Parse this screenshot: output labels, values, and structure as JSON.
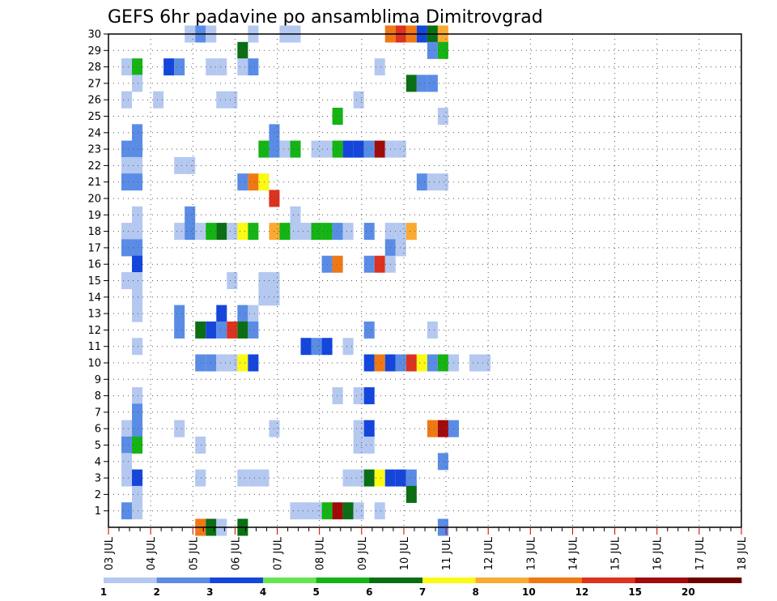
{
  "chart_data": {
    "type": "heatmap",
    "title": "GEFS 6hr padavine po ansamblima Dimitrovgrad",
    "x_labels": [
      "03 JUL",
      "04 JUL",
      "05 JUL",
      "06 JUL",
      "07 JUL",
      "08 JUL",
      "09 JUL",
      "10 JUL",
      "11 JUL",
      "12 JUL",
      "13 JUL",
      "14 JUL",
      "15 JUL",
      "16 JUL",
      "17 JUL",
      "18 JUL"
    ],
    "y_labels": [
      "1",
      "2",
      "3",
      "4",
      "5",
      "6",
      "7",
      "8",
      "9",
      "10",
      "11",
      "12",
      "13",
      "14",
      "15",
      "16",
      "17",
      "18",
      "19",
      "20",
      "21",
      "22",
      "23",
      "24",
      "25",
      "26",
      "27",
      "28",
      "29",
      "30"
    ],
    "x_range": [
      0,
      60
    ],
    "y_range": [
      0,
      30
    ],
    "grid": "dotted",
    "legend_placement": "bottom",
    "legend": {
      "labels": [
        "1",
        "2",
        "3",
        "4",
        "5",
        "6",
        "7",
        "8",
        "10",
        "12",
        "15",
        "20"
      ],
      "colors": [
        "#b4c8f0",
        "#5a8ce6",
        "#1446dc",
        "#64e650",
        "#14b414",
        "#0a6e14",
        "#fafa14",
        "#faaa32",
        "#f07814",
        "#dc321e",
        "#a00a0a",
        "#6e0000"
      ]
    },
    "cells": [
      [
        30,
        [
          [
            6,
            1
          ],
          [
            7,
            2
          ],
          [
            8,
            1
          ],
          [
            12,
            1
          ],
          [
            15,
            1
          ],
          [
            16,
            1
          ],
          [
            25,
            9
          ],
          [
            26,
            10
          ],
          [
            27,
            9
          ],
          [
            28,
            3
          ],
          [
            29,
            6
          ],
          [
            30,
            8
          ]
        ]
      ],
      [
        29,
        [
          [
            11,
            6
          ],
          [
            29,
            2
          ],
          [
            30,
            5
          ]
        ]
      ],
      [
        28,
        [
          [
            0,
            1
          ],
          [
            1,
            5
          ],
          [
            4,
            3
          ],
          [
            5,
            2
          ],
          [
            8,
            1
          ],
          [
            9,
            1
          ],
          [
            11,
            1
          ],
          [
            12,
            2
          ],
          [
            24,
            1
          ]
        ]
      ],
      [
        27,
        [
          [
            1,
            1
          ],
          [
            27,
            6
          ],
          [
            28,
            2
          ],
          [
            29,
            2
          ]
        ]
      ],
      [
        26,
        [
          [
            0,
            1
          ],
          [
            3,
            1
          ],
          [
            9,
            1
          ],
          [
            10,
            1
          ],
          [
            22,
            1
          ]
        ]
      ],
      [
        25,
        [
          [
            20,
            5
          ],
          [
            30,
            1
          ]
        ]
      ],
      [
        24,
        [
          [
            1,
            2
          ],
          [
            14,
            2
          ]
        ]
      ],
      [
        23,
        [
          [
            0,
            2
          ],
          [
            1,
            2
          ],
          [
            13,
            5
          ],
          [
            14,
            2
          ],
          [
            15,
            1
          ],
          [
            16,
            5
          ],
          [
            18,
            1
          ],
          [
            19,
            1
          ],
          [
            20,
            5
          ],
          [
            21,
            3
          ],
          [
            22,
            3
          ],
          [
            23,
            2
          ],
          [
            24,
            11
          ],
          [
            25,
            1
          ],
          [
            26,
            1
          ]
        ]
      ],
      [
        22,
        [
          [
            0,
            1
          ],
          [
            1,
            1
          ],
          [
            5,
            1
          ],
          [
            6,
            1
          ]
        ]
      ],
      [
        21,
        [
          [
            0,
            2
          ],
          [
            1,
            2
          ],
          [
            11,
            2
          ],
          [
            12,
            9
          ],
          [
            13,
            7
          ],
          [
            28,
            2
          ],
          [
            29,
            1
          ],
          [
            30,
            1
          ]
        ]
      ],
      [
        20,
        [
          [
            14,
            10
          ]
        ]
      ],
      [
        19,
        [
          [
            1,
            1
          ],
          [
            6,
            2
          ],
          [
            16,
            1
          ]
        ]
      ],
      [
        18,
        [
          [
            0,
            1
          ],
          [
            1,
            1
          ],
          [
            5,
            1
          ],
          [
            6,
            2
          ],
          [
            7,
            1
          ],
          [
            8,
            5
          ],
          [
            9,
            6
          ],
          [
            10,
            1
          ],
          [
            11,
            7
          ],
          [
            12,
            5
          ],
          [
            14,
            8
          ],
          [
            15,
            5
          ],
          [
            16,
            1
          ],
          [
            17,
            1
          ],
          [
            18,
            5
          ],
          [
            19,
            5
          ],
          [
            20,
            2
          ],
          [
            21,
            1
          ],
          [
            23,
            2
          ],
          [
            25,
            1
          ],
          [
            26,
            1
          ],
          [
            27,
            8
          ]
        ]
      ],
      [
        17,
        [
          [
            0,
            2
          ],
          [
            1,
            2
          ],
          [
            25,
            2
          ],
          [
            26,
            1
          ]
        ]
      ],
      [
        16,
        [
          [
            1,
            3
          ],
          [
            19,
            2
          ],
          [
            20,
            9
          ],
          [
            23,
            2
          ],
          [
            24,
            10
          ],
          [
            25,
            1
          ]
        ]
      ],
      [
        15,
        [
          [
            0,
            1
          ],
          [
            1,
            1
          ],
          [
            10,
            1
          ],
          [
            13,
            1
          ],
          [
            14,
            1
          ]
        ]
      ],
      [
        14,
        [
          [
            1,
            1
          ],
          [
            13,
            1
          ],
          [
            14,
            1
          ]
        ]
      ],
      [
        13,
        [
          [
            1,
            1
          ],
          [
            5,
            2
          ],
          [
            9,
            3
          ],
          [
            11,
            2
          ],
          [
            12,
            1
          ]
        ]
      ],
      [
        12,
        [
          [
            5,
            2
          ],
          [
            7,
            6
          ],
          [
            8,
            3
          ],
          [
            9,
            2
          ],
          [
            10,
            10
          ],
          [
            11,
            6
          ],
          [
            12,
            2
          ],
          [
            23,
            2
          ],
          [
            29,
            1
          ]
        ]
      ],
      [
        11,
        [
          [
            1,
            1
          ],
          [
            17,
            3
          ],
          [
            18,
            2
          ],
          [
            19,
            3
          ],
          [
            21,
            1
          ]
        ]
      ],
      [
        10,
        [
          [
            7,
            2
          ],
          [
            8,
            2
          ],
          [
            9,
            1
          ],
          [
            10,
            1
          ],
          [
            11,
            7
          ],
          [
            12,
            3
          ],
          [
            23,
            3
          ],
          [
            24,
            9
          ],
          [
            25,
            3
          ],
          [
            26,
            2
          ],
          [
            27,
            10
          ],
          [
            28,
            7
          ],
          [
            29,
            2
          ],
          [
            30,
            5
          ],
          [
            31,
            1
          ],
          [
            33,
            1
          ],
          [
            34,
            1
          ]
        ]
      ],
      [
        8,
        [
          [
            1,
            1
          ],
          [
            20,
            1
          ],
          [
            22,
            1
          ],
          [
            23,
            3
          ]
        ]
      ],
      [
        7,
        [
          [
            1,
            2
          ]
        ]
      ],
      [
        6,
        [
          [
            0,
            1
          ],
          [
            1,
            2
          ],
          [
            5,
            1
          ],
          [
            14,
            1
          ],
          [
            22,
            1
          ],
          [
            23,
            3
          ],
          [
            29,
            9
          ],
          [
            30,
            11
          ],
          [
            31,
            2
          ]
        ]
      ],
      [
        5,
        [
          [
            0,
            2
          ],
          [
            1,
            5
          ],
          [
            7,
            1
          ],
          [
            22,
            1
          ],
          [
            23,
            1
          ]
        ]
      ],
      [
        4,
        [
          [
            0,
            1
          ],
          [
            30,
            2
          ]
        ]
      ],
      [
        3,
        [
          [
            0,
            1
          ],
          [
            1,
            3
          ],
          [
            7,
            1
          ],
          [
            11,
            1
          ],
          [
            12,
            1
          ],
          [
            13,
            1
          ],
          [
            21,
            1
          ],
          [
            22,
            1
          ],
          [
            23,
            6
          ],
          [
            24,
            7
          ],
          [
            25,
            3
          ],
          [
            26,
            3
          ],
          [
            27,
            2
          ]
        ]
      ],
      [
        2,
        [
          [
            1,
            1
          ],
          [
            27,
            6
          ]
        ]
      ],
      [
        1,
        [
          [
            0,
            2
          ],
          [
            1,
            1
          ],
          [
            16,
            1
          ],
          [
            17,
            1
          ],
          [
            18,
            1
          ],
          [
            19,
            5
          ],
          [
            20,
            11
          ],
          [
            21,
            6
          ],
          [
            22,
            1
          ],
          [
            24,
            1
          ]
        ]
      ],
      [
        0,
        [
          [
            7,
            9
          ],
          [
            8,
            6
          ],
          [
            9,
            1
          ],
          [
            11,
            6
          ],
          [
            30,
            2
          ]
        ]
      ]
    ]
  }
}
